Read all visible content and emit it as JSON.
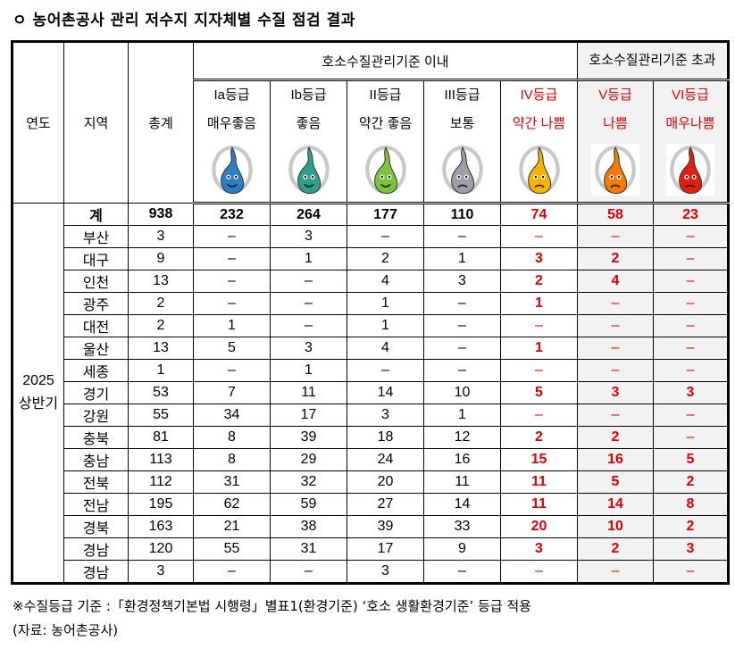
{
  "title": "ㅇ 농어촌공사 관리 저수지 지자체별 수질 점검 결과",
  "header": {
    "year": "연도",
    "region": "지역",
    "total": "총계",
    "within": "호소수질관리기준 이내",
    "exceed": "호소수질관리기준 초과",
    "grades": [
      {
        "grade": "Ia등급",
        "desc": "매우좋음",
        "color": "#2a7fc0",
        "icon": "droplet-very-good-icon"
      },
      {
        "grade": "Ib등급",
        "desc": "좋음",
        "color": "#2f9e8c",
        "icon": "droplet-good-icon"
      },
      {
        "grade": "II등급",
        "desc": "약간 좋음",
        "color": "#7cc23a",
        "icon": "droplet-slightly-good-icon"
      },
      {
        "grade": "III등급",
        "desc": "보통",
        "color": "#9aa0a6",
        "icon": "droplet-normal-icon"
      },
      {
        "grade": "IV등급",
        "desc": "약간 나쁨",
        "color": "#f5b400",
        "icon": "droplet-slightly-bad-icon"
      },
      {
        "grade": "V등급",
        "desc": "나쁨",
        "color": "#f57c00",
        "icon": "droplet-bad-icon"
      },
      {
        "grade": "VI등급",
        "desc": "매우나쁨",
        "color": "#e02010",
        "icon": "droplet-very-bad-icon"
      }
    ]
  },
  "period": {
    "year": "2025",
    "half": "상반기"
  },
  "rows": [
    [
      "계",
      "938",
      "232",
      "264",
      "177",
      "110",
      "74",
      "58",
      "23"
    ],
    [
      "부산",
      "3",
      "–",
      "3",
      "–",
      "–",
      "–",
      "–",
      "–"
    ],
    [
      "대구",
      "9",
      "–",
      "1",
      "2",
      "1",
      "3",
      "2",
      "–"
    ],
    [
      "인천",
      "13",
      "–",
      "–",
      "4",
      "3",
      "2",
      "4",
      "–"
    ],
    [
      "광주",
      "2",
      "–",
      "–",
      "1",
      "–",
      "1",
      "–",
      "–"
    ],
    [
      "대전",
      "2",
      "1",
      "–",
      "1",
      "–",
      "–",
      "–",
      "–"
    ],
    [
      "울산",
      "13",
      "5",
      "3",
      "4",
      "–",
      "1",
      "–",
      "–"
    ],
    [
      "세종",
      "1",
      "–",
      "1",
      "–",
      "–",
      "–",
      "–",
      "–"
    ],
    [
      "경기",
      "53",
      "7",
      "11",
      "14",
      "10",
      "5",
      "3",
      "3"
    ],
    [
      "강원",
      "55",
      "34",
      "17",
      "3",
      "1",
      "–",
      "–",
      "–"
    ],
    [
      "충북",
      "81",
      "8",
      "39",
      "18",
      "12",
      "2",
      "2",
      "–"
    ],
    [
      "충남",
      "113",
      "8",
      "29",
      "24",
      "16",
      "15",
      "16",
      "5"
    ],
    [
      "전북",
      "112",
      "31",
      "32",
      "20",
      "11",
      "11",
      "5",
      "2"
    ],
    [
      "전남",
      "195",
      "62",
      "59",
      "27",
      "14",
      "11",
      "14",
      "8"
    ],
    [
      "경북",
      "163",
      "21",
      "38",
      "39",
      "33",
      "20",
      "10",
      "2"
    ],
    [
      "경남",
      "120",
      "55",
      "31",
      "17",
      "9",
      "3",
      "2",
      "3"
    ],
    [
      "경남",
      "3",
      "–",
      "–",
      "3",
      "–",
      "–",
      "–",
      "–"
    ]
  ],
  "footnote": "※수질등급 기준 :「환경정책기본법 시행령」별표1(환경기준) ‘호소 생활환경기준’ 등급 적용",
  "source": "(자료: 농어촌공사)"
}
